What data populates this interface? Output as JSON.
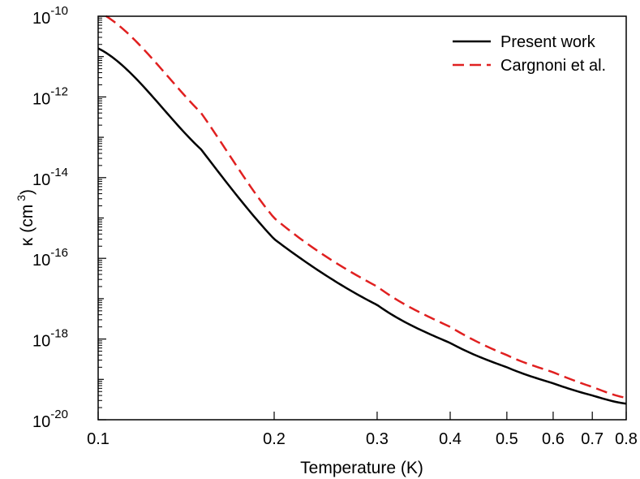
{
  "chart_data": {
    "type": "line",
    "xlabel": "Temperature (K)",
    "ylabel_main": "κ (cm",
    "ylabel_sup": "3",
    "ylabel_close": ")",
    "x_scale": "log",
    "y_scale": "log",
    "xlim": [
      0.1,
      0.8
    ],
    "ylim": [
      1e-20,
      1e-10
    ],
    "x_ticks": [
      0.1,
      0.2,
      0.3,
      0.4,
      0.5,
      0.6,
      0.7,
      0.8
    ],
    "x_tick_labels": [
      "0.1",
      "0.2",
      "0.3",
      "0.4",
      "0.5",
      "0.6",
      "0.7",
      "0.8"
    ],
    "y_major_exponents": [
      -20,
      -18,
      -16,
      -14,
      -12,
      -10
    ],
    "y_tick_base": "10",
    "y_tick_exponent_labels": [
      "-20",
      "-18",
      "-16",
      "-14",
      "-12",
      "-10"
    ],
    "legend_position": "top-right",
    "series": [
      {
        "name": "Present work",
        "color": "#000000",
        "dash": "solid",
        "x": [
          0.1,
          0.15,
          0.2,
          0.3,
          0.4,
          0.5,
          0.6,
          0.7,
          0.8
        ],
        "y": [
          1.6e-11,
          5e-14,
          3e-16,
          7e-18,
          8e-19,
          2e-19,
          8e-20,
          4e-20,
          2.5e-20
        ]
      },
      {
        "name": "Cargnoni et al.",
        "color": "#e02020",
        "dash": "dashed",
        "x": [
          0.1,
          0.15,
          0.2,
          0.3,
          0.4,
          0.5,
          0.6,
          0.7,
          0.8
        ],
        "y": [
          1.3e-10,
          4e-13,
          1e-15,
          2e-17,
          2e-18,
          4e-19,
          1.5e-19,
          6.5e-20,
          3.5e-20
        ]
      }
    ]
  }
}
